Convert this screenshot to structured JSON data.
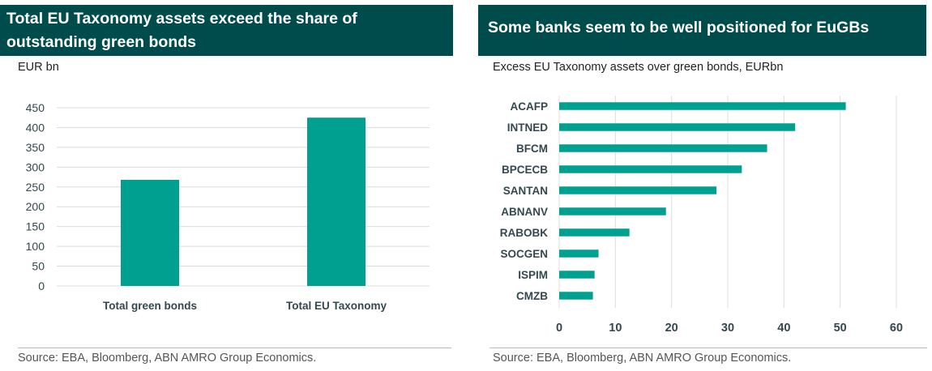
{
  "colors": {
    "title_bg": "#004c4c",
    "bar": "#00a091",
    "grid": "#dcdcdc",
    "axis_text": "#33484f"
  },
  "left": {
    "title": "Total EU Taxonomy assets exceed the share of outstanding green bonds",
    "subtitle": "EUR bn",
    "source": "Source: EBA, Bloomberg, ABN AMRO Group Economics."
  },
  "right": {
    "title": "Some banks seem to be well positioned for EuGBs",
    "subtitle": "Excess EU Taxonomy assets over green bonds, EURbn",
    "source": "Source: EBA, Bloomberg, ABN AMRO Group Economics."
  },
  "chart_data": [
    {
      "type": "bar",
      "orientation": "vertical",
      "title": "Total EU Taxonomy assets exceed the share of outstanding green bonds",
      "ylabel": "EUR bn",
      "categories": [
        "Total green bonds",
        "Total EU Taxonomy"
      ],
      "values": [
        268,
        425
      ],
      "ylim": [
        0,
        450
      ],
      "yticks": [
        0,
        50,
        100,
        150,
        200,
        250,
        300,
        350,
        400,
        450
      ],
      "grid": true,
      "legend": "none"
    },
    {
      "type": "bar",
      "orientation": "horizontal",
      "title": "Some banks seem to be well positioned for EuGBs",
      "xlabel": "Excess EU Taxonomy assets over green bonds, EURbn",
      "categories": [
        "ACAFP",
        "INTNED",
        "BFCM",
        "BPCECB",
        "SANTAN",
        "ABNANV",
        "RABOBK",
        "SOCGEN",
        "ISPIM",
        "CMZB"
      ],
      "values": [
        51,
        42,
        37,
        32.5,
        28,
        19,
        12.5,
        7,
        6.3,
        6
      ],
      "xlim": [
        0,
        60
      ],
      "xticks": [
        0,
        10,
        20,
        30,
        40,
        50,
        60
      ],
      "grid": true,
      "legend": "none"
    }
  ]
}
